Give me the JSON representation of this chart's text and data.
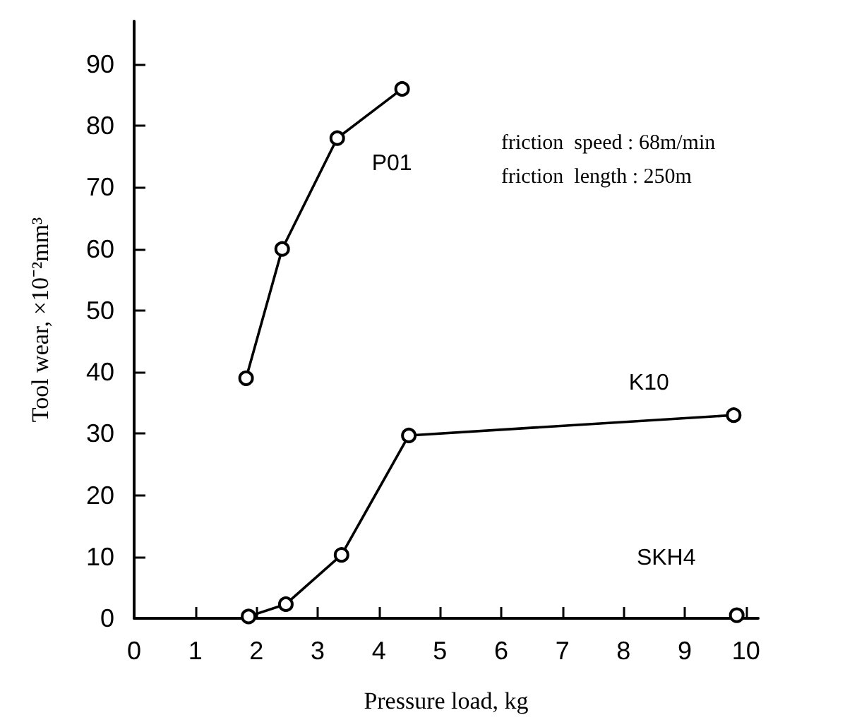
{
  "chart_data": {
    "type": "line",
    "xlabel": "Pressure load, kg",
    "ylabel": "Tool wear, ×10⁻²mm³",
    "xlim": [
      0,
      10.2
    ],
    "xticks": [
      0,
      1,
      2,
      3,
      4,
      5,
      6,
      7,
      8,
      9,
      10
    ],
    "ylim": [
      0,
      97
    ],
    "yticks": [
      0,
      10,
      20,
      30,
      40,
      50,
      60,
      70,
      80,
      90
    ],
    "grid": false,
    "legend": false,
    "marker": "circle",
    "line_style": "solid",
    "series": [
      {
        "name": "P01",
        "color": "#000000",
        "x": [
          1.83,
          2.42,
          3.32,
          4.38
        ],
        "values": [
          39,
          60,
          78,
          86
        ]
      },
      {
        "name": "K10",
        "color": "#000000",
        "x": [
          1.87,
          2.48,
          3.39,
          4.49,
          9.8
        ],
        "values": [
          0.3,
          2.3,
          10.3,
          29.7,
          33
        ]
      },
      {
        "name": "SKH4",
        "color": "#000000",
        "x": [
          9.85
        ],
        "values": [
          0.5
        ]
      }
    ],
    "annotations": [
      "friction  speed : 68m/min",
      "friction  length : 250m"
    ]
  }
}
